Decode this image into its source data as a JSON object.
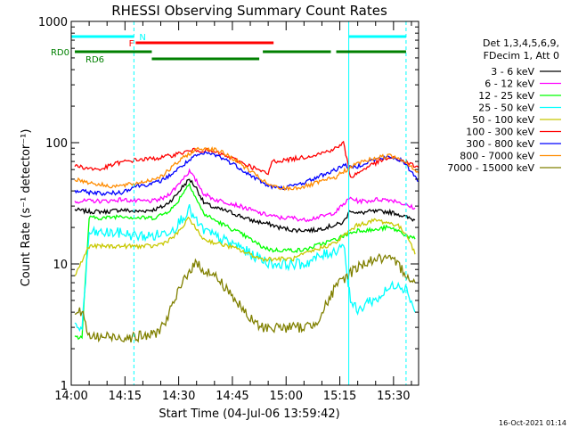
{
  "chart_data": {
    "type": "line",
    "title": "RHESSI Observing Summary Count Rates",
    "xlabel": "Start Time (04-Jul-06 13:59:42)",
    "ylabel": "Count Rate (s⁻¹ detector⁻¹)",
    "yscale": "log",
    "ylim": [
      1,
      1000
    ],
    "xlim_minutes": [
      0,
      97
    ],
    "x_ticks": [
      {
        "t": 0,
        "label": "14:00"
      },
      {
        "t": 15,
        "label": "14:15"
      },
      {
        "t": 30,
        "label": "14:30"
      },
      {
        "t": 45,
        "label": "14:45"
      },
      {
        "t": 60,
        "label": "15:00"
      },
      {
        "t": 75,
        "label": "15:15"
      },
      {
        "t": 90,
        "label": "15:30"
      }
    ],
    "y_ticks": [
      {
        "v": 1,
        "label": "1"
      },
      {
        "v": 10,
        "label": "10"
      },
      {
        "v": 100,
        "label": "100"
      },
      {
        "v": 1000,
        "label": "1000"
      }
    ],
    "legend": {
      "placement": "right",
      "header": [
        "Det 1,3,4,5,6,9,",
        "FDecim 1, Att 0"
      ]
    },
    "series": [
      {
        "name": "3 - 6 keV",
        "color": "#000000",
        "points": [
          [
            1,
            28
          ],
          [
            5,
            27
          ],
          [
            10,
            27
          ],
          [
            14,
            28
          ],
          [
            18,
            27
          ],
          [
            23,
            28
          ],
          [
            26,
            30
          ],
          [
            29,
            36
          ],
          [
            31,
            43
          ],
          [
            33,
            50
          ],
          [
            35,
            42
          ],
          [
            37,
            32
          ],
          [
            40,
            29
          ],
          [
            44,
            27
          ],
          [
            47,
            25
          ],
          [
            50,
            23
          ],
          [
            53,
            22
          ],
          [
            56,
            21
          ],
          [
            58,
            20
          ],
          [
            62,
            19
          ],
          [
            65,
            19
          ],
          [
            68,
            19
          ],
          [
            71,
            20
          ],
          [
            74,
            21
          ],
          [
            76,
            22
          ],
          [
            78,
            28
          ],
          [
            80,
            26
          ],
          [
            83,
            27
          ],
          [
            85,
            27
          ],
          [
            88,
            27
          ],
          [
            91,
            26
          ],
          [
            94,
            24
          ],
          [
            96,
            23
          ]
        ]
      },
      {
        "name": "6 - 12 keV",
        "color": "#ff00ff",
        "points": [
          [
            1,
            33
          ],
          [
            5,
            33
          ],
          [
            10,
            33
          ],
          [
            14,
            34
          ],
          [
            18,
            33
          ],
          [
            23,
            33
          ],
          [
            26,
            35
          ],
          [
            29,
            42
          ],
          [
            31,
            50
          ],
          [
            33,
            58
          ],
          [
            35,
            48
          ],
          [
            37,
            38
          ],
          [
            40,
            34
          ],
          [
            44,
            32
          ],
          [
            47,
            30
          ],
          [
            50,
            28
          ],
          [
            53,
            26
          ],
          [
            56,
            25
          ],
          [
            58,
            24
          ],
          [
            62,
            24
          ],
          [
            65,
            23
          ],
          [
            68,
            24
          ],
          [
            71,
            25
          ],
          [
            74,
            27
          ],
          [
            76,
            31
          ],
          [
            78,
            35
          ],
          [
            80,
            33
          ],
          [
            83,
            33
          ],
          [
            85,
            34
          ],
          [
            88,
            34
          ],
          [
            91,
            33
          ],
          [
            94,
            30
          ],
          [
            96,
            29
          ]
        ]
      },
      {
        "name": "12 - 25 keV",
        "color": "#00ff00",
        "points": [
          [
            1,
            2.5
          ],
          [
            3,
            2.5
          ],
          [
            5,
            24
          ],
          [
            10,
            24
          ],
          [
            14,
            25
          ],
          [
            18,
            24
          ],
          [
            23,
            24
          ],
          [
            26,
            26
          ],
          [
            29,
            30
          ],
          [
            31,
            38
          ],
          [
            33,
            46
          ],
          [
            35,
            34
          ],
          [
            37,
            26
          ],
          [
            40,
            23
          ],
          [
            44,
            20
          ],
          [
            47,
            18
          ],
          [
            50,
            16
          ],
          [
            53,
            14
          ],
          [
            56,
            13
          ],
          [
            58,
            13
          ],
          [
            62,
            13
          ],
          [
            65,
            13
          ],
          [
            68,
            14
          ],
          [
            71,
            15
          ],
          [
            74,
            16
          ],
          [
            76,
            17
          ],
          [
            78,
            18
          ],
          [
            80,
            19
          ],
          [
            83,
            19
          ],
          [
            85,
            19
          ],
          [
            88,
            20
          ],
          [
            91,
            19
          ],
          [
            94,
            17
          ],
          [
            96,
            16
          ]
        ]
      },
      {
        "name": "25 - 50 keV",
        "color": "#00ffff",
        "points": [
          [
            1,
            3
          ],
          [
            3,
            3
          ],
          [
            5,
            18
          ],
          [
            10,
            18
          ],
          [
            14,
            18
          ],
          [
            18,
            17
          ],
          [
            23,
            17
          ],
          [
            26,
            18
          ],
          [
            29,
            20
          ],
          [
            31,
            24
          ],
          [
            33,
            28
          ],
          [
            35,
            22
          ],
          [
            37,
            19
          ],
          [
            40,
            17
          ],
          [
            44,
            15
          ],
          [
            47,
            14
          ],
          [
            50,
            12
          ],
          [
            53,
            11
          ],
          [
            56,
            10
          ],
          [
            58,
            10
          ],
          [
            62,
            10
          ],
          [
            65,
            10
          ],
          [
            68,
            11
          ],
          [
            71,
            12
          ],
          [
            74,
            13
          ],
          [
            76,
            15
          ],
          [
            78,
            5
          ],
          [
            80,
            4
          ],
          [
            83,
            5
          ],
          [
            85,
            5
          ],
          [
            88,
            6
          ],
          [
            91,
            7
          ],
          [
            94,
            6
          ],
          [
            96,
            4
          ]
        ]
      },
      {
        "name": "50 - 100 keV",
        "color": "#c8c800",
        "points": [
          [
            1,
            8
          ],
          [
            5,
            14
          ],
          [
            10,
            14
          ],
          [
            14,
            14
          ],
          [
            18,
            14
          ],
          [
            23,
            14
          ],
          [
            26,
            15
          ],
          [
            29,
            17
          ],
          [
            31,
            20
          ],
          [
            33,
            24
          ],
          [
            35,
            19
          ],
          [
            37,
            16
          ],
          [
            40,
            15
          ],
          [
            44,
            14
          ],
          [
            47,
            13
          ],
          [
            50,
            12
          ],
          [
            53,
            11
          ],
          [
            56,
            11
          ],
          [
            58,
            11
          ],
          [
            62,
            11
          ],
          [
            65,
            12
          ],
          [
            68,
            13
          ],
          [
            71,
            14
          ],
          [
            74,
            15
          ],
          [
            76,
            17
          ],
          [
            78,
            19
          ],
          [
            80,
            21
          ],
          [
            83,
            22
          ],
          [
            85,
            23
          ],
          [
            88,
            22
          ],
          [
            91,
            21
          ],
          [
            94,
            17
          ],
          [
            96,
            12
          ]
        ]
      },
      {
        "name": "100 - 300 keV",
        "color": "#ff0000",
        "points": [
          [
            1,
            65
          ],
          [
            4,
            62
          ],
          [
            8,
            60
          ],
          [
            13,
            68
          ],
          [
            18,
            72
          ],
          [
            23,
            74
          ],
          [
            26,
            76
          ],
          [
            29,
            80
          ],
          [
            32,
            84
          ],
          [
            35,
            87
          ],
          [
            38,
            86
          ],
          [
            41,
            82
          ],
          [
            44,
            76
          ],
          [
            47,
            70
          ],
          [
            50,
            64
          ],
          [
            53,
            58
          ],
          [
            55,
            55
          ],
          [
            56,
            70
          ],
          [
            60,
            72
          ],
          [
            65,
            76
          ],
          [
            70,
            82
          ],
          [
            74,
            90
          ],
          [
            76,
            100
          ],
          [
            78,
            52
          ],
          [
            80,
            56
          ],
          [
            83,
            64
          ],
          [
            86,
            70
          ],
          [
            89,
            75
          ],
          [
            92,
            72
          ],
          [
            95,
            66
          ],
          [
            97,
            62
          ]
        ]
      },
      {
        "name": "300 - 800 keV",
        "color": "#0000ff",
        "points": [
          [
            1,
            40
          ],
          [
            5,
            39
          ],
          [
            10,
            38
          ],
          [
            14,
            39
          ],
          [
            18,
            44
          ],
          [
            23,
            46
          ],
          [
            26,
            50
          ],
          [
            29,
            58
          ],
          [
            32,
            68
          ],
          [
            35,
            78
          ],
          [
            38,
            82
          ],
          [
            41,
            78
          ],
          [
            44,
            70
          ],
          [
            47,
            62
          ],
          [
            50,
            54
          ],
          [
            53,
            48
          ],
          [
            55,
            44
          ],
          [
            58,
            42
          ],
          [
            62,
            44
          ],
          [
            66,
            48
          ],
          [
            70,
            54
          ],
          [
            74,
            60
          ],
          [
            76,
            66
          ],
          [
            78,
            62
          ],
          [
            80,
            64
          ],
          [
            83,
            70
          ],
          [
            86,
            74
          ],
          [
            89,
            76
          ],
          [
            92,
            72
          ],
          [
            95,
            58
          ],
          [
            97,
            48
          ]
        ]
      },
      {
        "name": "800 - 7000 keV",
        "color": "#ff8c00",
        "points": [
          [
            1,
            50
          ],
          [
            5,
            47
          ],
          [
            10,
            44
          ],
          [
            14,
            44
          ],
          [
            18,
            46
          ],
          [
            23,
            50
          ],
          [
            26,
            55
          ],
          [
            29,
            66
          ],
          [
            32,
            78
          ],
          [
            35,
            88
          ],
          [
            38,
            90
          ],
          [
            41,
            86
          ],
          [
            44,
            78
          ],
          [
            47,
            68
          ],
          [
            50,
            58
          ],
          [
            53,
            50
          ],
          [
            55,
            45
          ],
          [
            58,
            42
          ],
          [
            62,
            42
          ],
          [
            66,
            44
          ],
          [
            70,
            48
          ],
          [
            74,
            52
          ],
          [
            76,
            58
          ],
          [
            78,
            62
          ],
          [
            80,
            68
          ],
          [
            83,
            72
          ],
          [
            86,
            76
          ],
          [
            89,
            78
          ],
          [
            92,
            74
          ],
          [
            95,
            64
          ],
          [
            97,
            56
          ]
        ]
      },
      {
        "name": "7000 - 15000 keV",
        "color": "#808000",
        "points": [
          [
            1,
            4
          ],
          [
            3,
            4
          ],
          [
            5,
            2.5
          ],
          [
            10,
            2.5
          ],
          [
            14,
            2.5
          ],
          [
            18,
            2.5
          ],
          [
            23,
            2.6
          ],
          [
            26,
            3.2
          ],
          [
            29,
            5
          ],
          [
            31,
            7
          ],
          [
            33,
            9
          ],
          [
            35,
            10
          ],
          [
            37,
            9
          ],
          [
            40,
            8
          ],
          [
            44,
            6
          ],
          [
            47,
            4.5
          ],
          [
            50,
            3.5
          ],
          [
            53,
            3
          ],
          [
            56,
            3
          ],
          [
            58,
            3
          ],
          [
            62,
            3
          ],
          [
            65,
            3
          ],
          [
            68,
            3.2
          ],
          [
            71,
            4.5
          ],
          [
            74,
            6.5
          ],
          [
            76,
            7.5
          ],
          [
            78,
            8.5
          ],
          [
            80,
            9.5
          ],
          [
            83,
            10.5
          ],
          [
            85,
            11
          ],
          [
            88,
            11
          ],
          [
            91,
            10
          ],
          [
            94,
            8
          ],
          [
            96,
            7
          ]
        ]
      }
    ],
    "state_bars": [
      {
        "label": "N",
        "color": "#00ffff",
        "segments": [
          [
            0,
            17.5
          ],
          [
            77.5,
            93.5
          ]
        ]
      },
      {
        "label": "F",
        "color": "#ff0000",
        "segments": [
          [
            18,
            56.5
          ]
        ]
      },
      {
        "label": "RD0",
        "color": "#008000",
        "segments": [
          [
            1,
            22.5
          ],
          [
            53.5,
            72.5
          ],
          [
            74,
            93.5
          ]
        ]
      },
      {
        "label": "RD6",
        "color": "#008000",
        "segments": [
          [
            22.5,
            52.5
          ]
        ]
      }
    ],
    "vertical_lines": [
      {
        "t": 0,
        "color": "#00ffff",
        "style": "solid"
      },
      {
        "t": 17.5,
        "color": "#00ffff",
        "style": "dashed"
      },
      {
        "t": 77.5,
        "color": "#00ffff",
        "style": "solid"
      },
      {
        "t": 93.5,
        "color": "#00ffff",
        "style": "dashed"
      }
    ]
  },
  "footer": {
    "timestamp": "16-Oct-2021 01:14"
  }
}
